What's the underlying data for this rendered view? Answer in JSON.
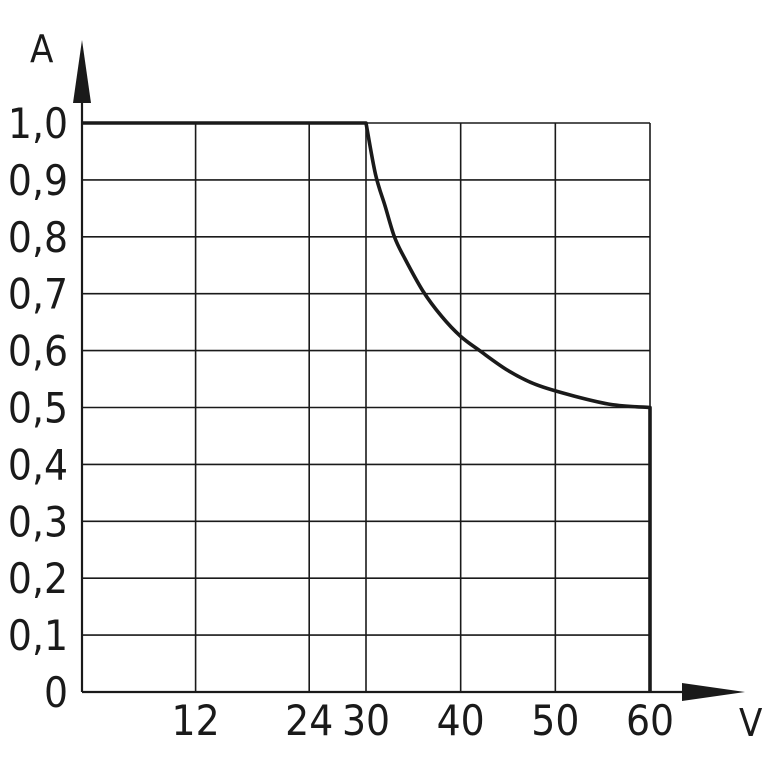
{
  "chart_data": {
    "type": "line",
    "title": "",
    "xlabel": "V",
    "ylabel": "A",
    "xlim": [
      0,
      60
    ],
    "ylim": [
      0,
      1.0
    ],
    "grid": true,
    "legend": "none",
    "x_ticks": [
      {
        "value": 12,
        "label": "12"
      },
      {
        "value": 24,
        "label": "24"
      },
      {
        "value": 30,
        "label": "30"
      },
      {
        "value": 40,
        "label": "40"
      },
      {
        "value": 50,
        "label": "50"
      },
      {
        "value": 60,
        "label": "60"
      }
    ],
    "y_ticks": [
      {
        "value": 0,
        "label": "0"
      },
      {
        "value": 0.1,
        "label": "0,1"
      },
      {
        "value": 0.2,
        "label": "0,2"
      },
      {
        "value": 0.3,
        "label": "0,3"
      },
      {
        "value": 0.4,
        "label": "0,4"
      },
      {
        "value": 0.5,
        "label": "0,5"
      },
      {
        "value": 0.6,
        "label": "0,6"
      },
      {
        "value": 0.7,
        "label": "0,7"
      },
      {
        "value": 0.8,
        "label": "0,8"
      },
      {
        "value": 0.9,
        "label": "0,9"
      },
      {
        "value": 1.0,
        "label": "1,0"
      }
    ],
    "series": [
      {
        "x": [
          0,
          30,
          31,
          32,
          33,
          34,
          36,
          38,
          40,
          42,
          45,
          48,
          52,
          56,
          60,
          60
        ],
        "y": [
          1.0,
          1.0,
          0.91,
          0.855,
          0.8,
          0.765,
          0.705,
          0.66,
          0.625,
          0.6,
          0.565,
          0.54,
          0.52,
          0.505,
          0.5,
          0
        ]
      }
    ],
    "colors": {
      "line": "#1a1a1a",
      "grid": "#1a1a1a",
      "background": "#ffffff"
    }
  }
}
